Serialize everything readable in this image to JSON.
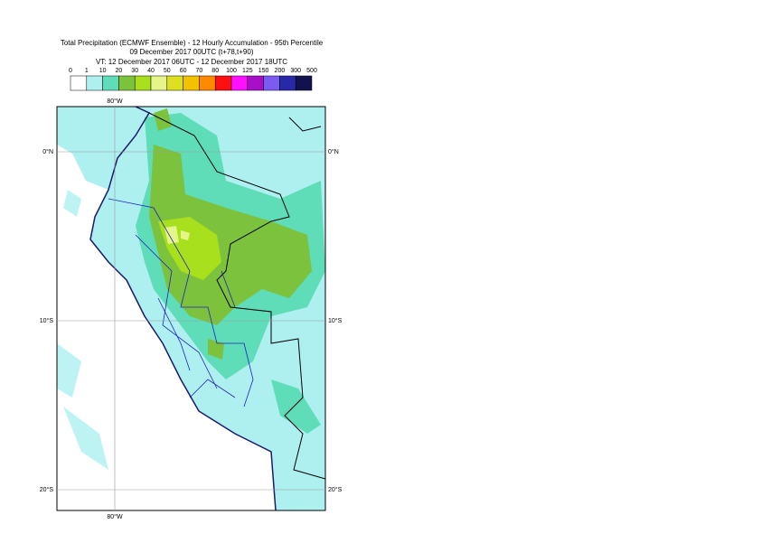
{
  "header": {
    "title": "Total Precipitation (ECMWF Ensemble) - 12 Hourly Accumulation - 95th Percentile",
    "base_time": "09 December 2017 00UTC (t+78,t+90)",
    "valid_time": "VT: 12 December 2017 06UTC - 12 December 2017 18UTC"
  },
  "legend": {
    "labels": [
      "0",
      "1",
      "10",
      "20",
      "30",
      "40",
      "50",
      "60",
      "70",
      "80",
      "100",
      "125",
      "150",
      "200",
      "300",
      "500"
    ],
    "colors": [
      "#ffffff",
      "#aef0f0",
      "#5fdcb8",
      "#7cc23c",
      "#a8e01e",
      "#e6f58a",
      "#dde022",
      "#f2c200",
      "#ff8a00",
      "#ff1010",
      "#ff10ff",
      "#a810c8",
      "#7a5cf0",
      "#2828a8",
      "#12124e"
    ]
  },
  "map": {
    "lon_labels": {
      "top": "80°W",
      "bottom": "80°W"
    },
    "lat_labels": [
      "0°N",
      "10°S",
      "20°S"
    ]
  }
}
